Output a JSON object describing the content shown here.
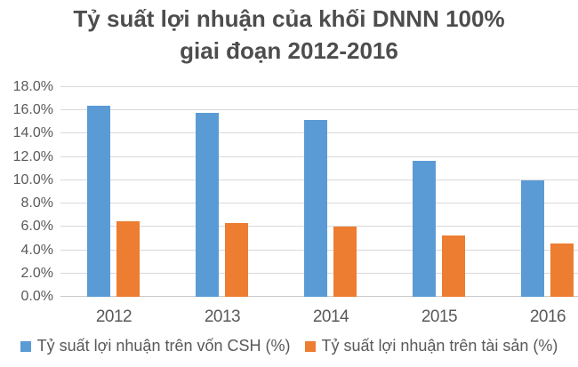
{
  "chart_data": {
    "type": "bar",
    "title_lines": [
      "Tỷ suất lợi nhuận của khối DNNN 100%",
      "giai đoạn 2012-2016"
    ],
    "title": "Tỷ suất lợi nhuận của khối DNNN 100% giai đoạn 2012-2016",
    "categories": [
      "2012",
      "2013",
      "2014",
      "2015",
      "2016"
    ],
    "series": [
      {
        "name": "Tỷ suất lợi nhuận trên vốn CSH (%)",
        "color": "#5B9BD5",
        "values": [
          16.4,
          15.8,
          15.2,
          11.7,
          10.0
        ]
      },
      {
        "name": "Tỷ suất lợi nhuận trên tài sản (%)",
        "color": "#ED7D31",
        "values": [
          6.5,
          6.3,
          6.0,
          5.3,
          4.6
        ]
      }
    ],
    "xlabel": "",
    "ylabel": "",
    "ylim": [
      0,
      18
    ],
    "ytick_step": 2,
    "ytick_labels": [
      "0.0%",
      "2.0%",
      "4.0%",
      "6.0%",
      "8.0%",
      "10.0%",
      "12.0%",
      "14.0%",
      "16.0%",
      "18.0%"
    ],
    "grid": true,
    "legend_position": "bottom"
  },
  "colors": {
    "title_text": "#4d4d4d",
    "axis_text": "#595959",
    "gridline": "#d9d9d9",
    "axis_line": "#c9c9c9",
    "background": "#ffffff"
  }
}
